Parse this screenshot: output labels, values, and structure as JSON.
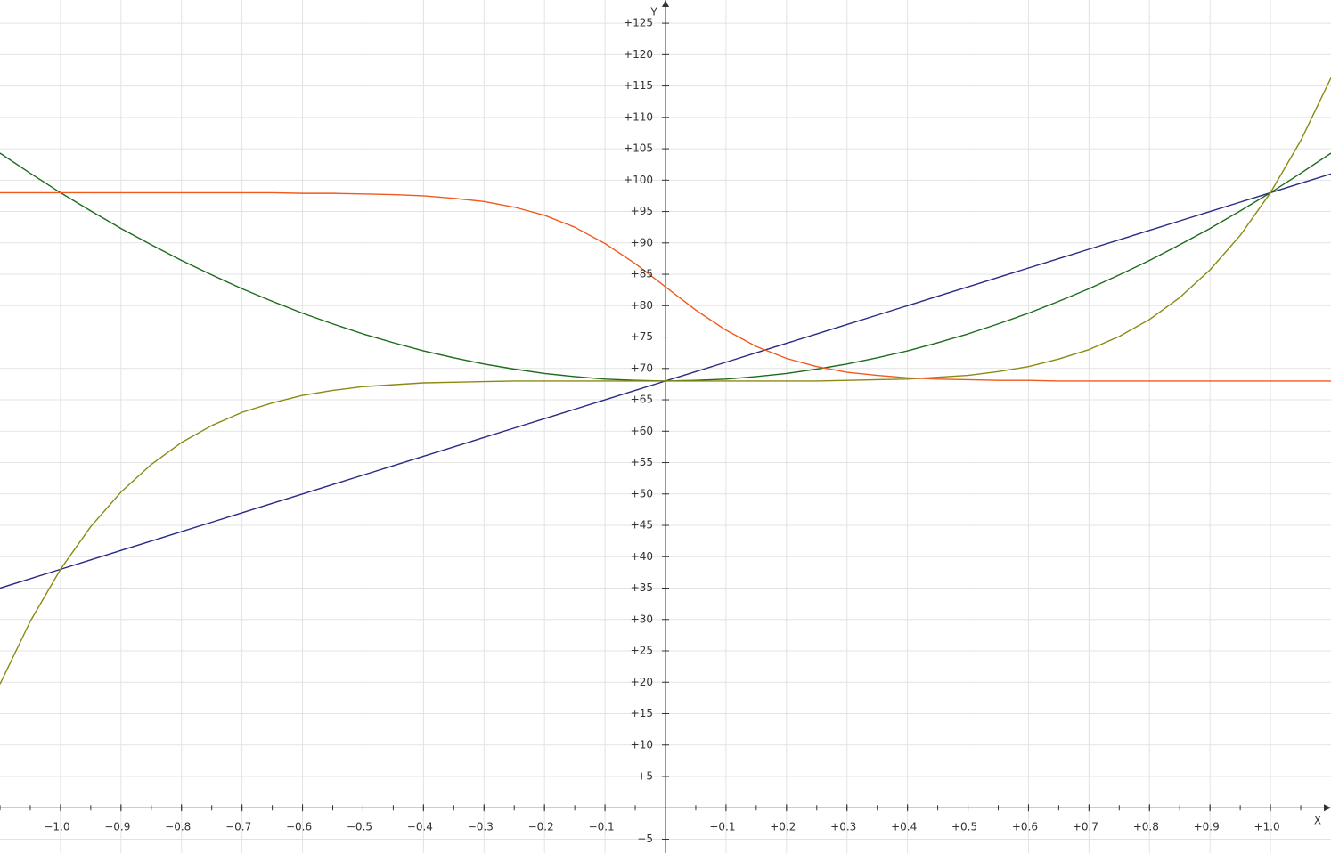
{
  "chart_data": {
    "type": "line",
    "x_label": "X",
    "y_label": "Y",
    "x": [
      -1.1,
      -1.05,
      -1.0,
      -0.95,
      -0.9,
      -0.85,
      -0.8,
      -0.75,
      -0.7,
      -0.65,
      -0.6,
      -0.55,
      -0.5,
      -0.45,
      -0.4,
      -0.35,
      -0.3,
      -0.25,
      -0.2,
      -0.15,
      -0.1,
      -0.05,
      0,
      0.05,
      0.1,
      0.15,
      0.2,
      0.25,
      0.3,
      0.35,
      0.4,
      0.45,
      0.5,
      0.55,
      0.6,
      0.65,
      0.7,
      0.75,
      0.8,
      0.85,
      0.9,
      0.95,
      1.0,
      1.05,
      1.1
    ],
    "series": [
      {
        "color": "#2a2a85",
        "values": [
          35,
          36.5,
          38,
          39.5,
          41,
          42.5,
          44,
          45.5,
          47,
          48.5,
          50,
          51.5,
          53,
          54.5,
          56,
          57.5,
          59,
          60.5,
          62,
          63.5,
          65,
          66.5,
          68,
          69.5,
          71,
          72.5,
          74,
          75.5,
          77,
          78.5,
          80,
          81.5,
          83,
          84.5,
          86,
          87.5,
          89,
          90.5,
          92,
          93.5,
          95,
          96.5,
          98,
          99.5,
          101
        ]
      },
      {
        "color": "#1c6b1c",
        "values": [
          104.3,
          101.1,
          98,
          95.1,
          92.3,
          89.7,
          87.2,
          84.9,
          82.7,
          80.7,
          78.8,
          77.1,
          75.5,
          74.1,
          72.8,
          71.7,
          70.7,
          69.9,
          69.2,
          68.7,
          68.3,
          68.1,
          68,
          68.1,
          68.3,
          68.7,
          69.2,
          69.9,
          70.7,
          71.7,
          72.8,
          74.1,
          75.5,
          77.1,
          78.8,
          80.7,
          82.7,
          84.9,
          87.2,
          89.7,
          92.3,
          95.1,
          98,
          101.1,
          104.3
        ]
      },
      {
        "color": "#8a8a12",
        "values": [
          19.7,
          29.7,
          38,
          44.8,
          50.3,
          54.7,
          58.2,
          60.9,
          63.0,
          64.5,
          65.7,
          66.5,
          67.1,
          67.4,
          67.7,
          67.8,
          67.9,
          68,
          68,
          68,
          68,
          68,
          68,
          68,
          68,
          68,
          68,
          68,
          68.1,
          68.2,
          68.3,
          68.6,
          68.9,
          69.5,
          70.3,
          71.5,
          73.0,
          75.1,
          77.8,
          81.3,
          85.7,
          91.2,
          98,
          106.3,
          116.3
        ]
      },
      {
        "color": "#f05a1e",
        "values": [
          98,
          98,
          98,
          98,
          98,
          98,
          98,
          98,
          98,
          98,
          97.9,
          97.9,
          97.8,
          97.7,
          97.5,
          97.1,
          96.6,
          95.7,
          94.4,
          92.5,
          89.9,
          86.7,
          83,
          79.3,
          76.1,
          73.5,
          71.6,
          70.3,
          69.4,
          68.9,
          68.5,
          68.3,
          68.2,
          68.1,
          68.1,
          68,
          68,
          68,
          68,
          68,
          68,
          68,
          68,
          68,
          68
        ]
      }
    ],
    "xlim": [
      -1.1,
      1.1
    ],
    "ylim": [
      -7.2,
      128.7
    ],
    "xticks": [
      {
        "value": -1.0,
        "label": "−1.0"
      },
      {
        "value": -0.9,
        "label": "−0.9"
      },
      {
        "value": -0.8,
        "label": "−0.8"
      },
      {
        "value": -0.7,
        "label": "−0.7"
      },
      {
        "value": -0.6,
        "label": "−0.6"
      },
      {
        "value": -0.5,
        "label": "−0.5"
      },
      {
        "value": -0.4,
        "label": "−0.4"
      },
      {
        "value": -0.3,
        "label": "−0.3"
      },
      {
        "value": -0.2,
        "label": "−0.2"
      },
      {
        "value": -0.1,
        "label": "−0.1"
      },
      {
        "value": 0.1,
        "label": "+0.1"
      },
      {
        "value": 0.2,
        "label": "+0.2"
      },
      {
        "value": 0.3,
        "label": "+0.3"
      },
      {
        "value": 0.4,
        "label": "+0.4"
      },
      {
        "value": 0.5,
        "label": "+0.5"
      },
      {
        "value": 0.6,
        "label": "+0.6"
      },
      {
        "value": 0.7,
        "label": "+0.7"
      },
      {
        "value": 0.8,
        "label": "+0.8"
      },
      {
        "value": 0.9,
        "label": "+0.9"
      },
      {
        "value": 1.0,
        "label": "+1.0"
      }
    ],
    "yticks": [
      {
        "value": -5,
        "label": "−5"
      },
      {
        "value": 5,
        "label": "+5"
      },
      {
        "value": 10,
        "label": "+10"
      },
      {
        "value": 15,
        "label": "+15"
      },
      {
        "value": 20,
        "label": "+20"
      },
      {
        "value": 25,
        "label": "+25"
      },
      {
        "value": 30,
        "label": "+30"
      },
      {
        "value": 35,
        "label": "+35"
      },
      {
        "value": 40,
        "label": "+40"
      },
      {
        "value": 45,
        "label": "+45"
      },
      {
        "value": 50,
        "label": "+50"
      },
      {
        "value": 55,
        "label": "+55"
      },
      {
        "value": 60,
        "label": "+60"
      },
      {
        "value": 65,
        "label": "+65"
      },
      {
        "value": 70,
        "label": "+70"
      },
      {
        "value": 75,
        "label": "+75"
      },
      {
        "value": 80,
        "label": "+80"
      },
      {
        "value": 85,
        "label": "+85"
      },
      {
        "value": 90,
        "label": "+90"
      },
      {
        "value": 95,
        "label": "+95"
      },
      {
        "value": 100,
        "label": "+100"
      },
      {
        "value": 105,
        "label": "+105"
      },
      {
        "value": 110,
        "label": "+110"
      },
      {
        "value": 115,
        "label": "+115"
      },
      {
        "value": 120,
        "label": "+120"
      },
      {
        "value": 125,
        "label": "+125"
      }
    ],
    "grid": true
  }
}
